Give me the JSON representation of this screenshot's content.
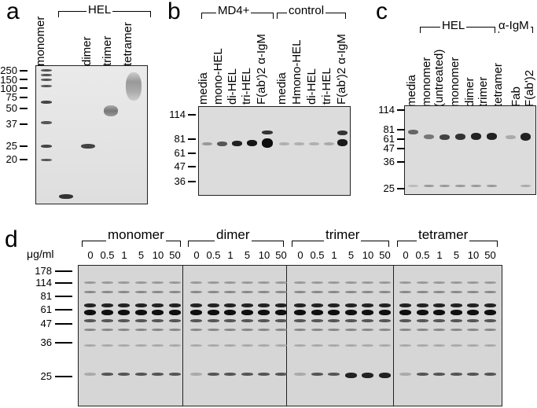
{
  "panels": {
    "a": {
      "letter": "a",
      "group_label": "HEL",
      "lanes": [
        "monomer",
        "dimer",
        "trimer",
        "tetramer"
      ],
      "mw_markers": [
        "250",
        "150",
        "100",
        "75",
        "50",
        "37",
        "25",
        "20"
      ]
    },
    "b": {
      "letter": "b",
      "group1_label": "MD4+",
      "group2_label": "control",
      "lanes": [
        "media",
        "mono-HEL",
        "di-HEL",
        "tri-HEL",
        "F(ab')2 α-IgM",
        "media",
        "Hmono-HEL",
        "di-HEL",
        "tri-HEL",
        "F(ab')2 α-IgM"
      ],
      "mw_markers": [
        "114",
        "81",
        "61",
        "47",
        "36"
      ]
    },
    "c": {
      "letter": "c",
      "group1_label": "HEL",
      "group2_label": "α-IgM",
      "lanes": [
        "media",
        "monomer (untreated)",
        "monomer",
        "dimer",
        "trimer",
        "tetramer",
        "Fab",
        "F(ab')2"
      ],
      "mw_markers": [
        "114",
        "81",
        "61",
        "47",
        "36",
        "25"
      ]
    },
    "d": {
      "letter": "d",
      "unit_label": "μg/ml",
      "groups": [
        "monomer",
        "dimer",
        "trimer",
        "tetramer"
      ],
      "concentrations": [
        "0",
        "0.5",
        "1",
        "5",
        "10",
        "50"
      ],
      "mw_markers": [
        "178",
        "114",
        "81",
        "61",
        "47",
        "36",
        "25"
      ]
    }
  },
  "colors": {
    "blot_bg": "#d9d9d9",
    "band_dark": "#1a1a1a",
    "text": "#000000"
  }
}
